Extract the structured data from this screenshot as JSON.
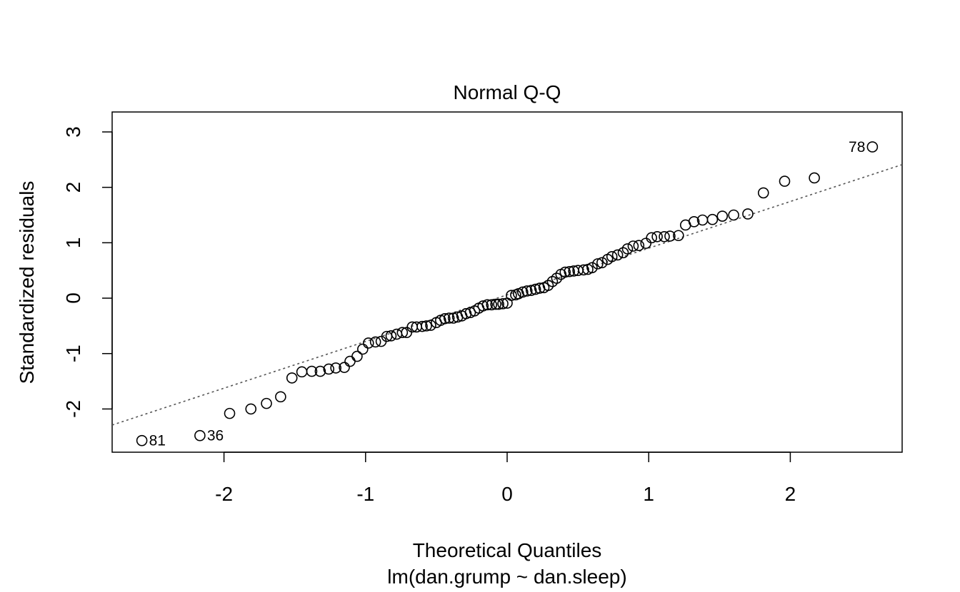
{
  "chart_data": {
    "type": "scatter",
    "title": "Normal Q-Q",
    "xlabel": "Theoretical Quantiles",
    "subtitle": "lm(dan.grump ~ dan.sleep)",
    "ylabel": "Standardized residuals",
    "xlim": [
      -2.79,
      2.79
    ],
    "ylim": [
      -2.78,
      3.36
    ],
    "x_ticks": [
      -2,
      -1,
      0,
      1,
      2
    ],
    "x_tick_labels": [
      "-2",
      "-1",
      "0",
      "1",
      "2"
    ],
    "y_ticks": [
      -2,
      -1,
      0,
      1,
      2,
      3
    ],
    "y_tick_labels": [
      "-2",
      "-1",
      "0",
      "1",
      "2",
      "3"
    ],
    "grid": false,
    "legend": "none",
    "reference_line": {
      "style": "dotted",
      "color": "#555555",
      "points": [
        [
          -2.79,
          -2.29
        ],
        [
          2.79,
          2.41
        ]
      ]
    },
    "points": [
      [
        -2.58,
        -2.57
      ],
      [
        -2.17,
        -2.48
      ],
      [
        -1.96,
        -2.08
      ],
      [
        -1.81,
        -2.0
      ],
      [
        -1.7,
        -1.9
      ],
      [
        -1.6,
        -1.78
      ],
      [
        -1.52,
        -1.44
      ],
      [
        -1.45,
        -1.33
      ],
      [
        -1.38,
        -1.32
      ],
      [
        -1.32,
        -1.32
      ],
      [
        -1.26,
        -1.28
      ],
      [
        -1.21,
        -1.26
      ],
      [
        -1.15,
        -1.25
      ],
      [
        -1.11,
        -1.14
      ],
      [
        -1.06,
        -1.05
      ],
      [
        -1.02,
        -0.92
      ],
      [
        -0.98,
        -0.81
      ],
      [
        -0.93,
        -0.79
      ],
      [
        -0.89,
        -0.78
      ],
      [
        -0.85,
        -0.69
      ],
      [
        -0.82,
        -0.68
      ],
      [
        -0.78,
        -0.65
      ],
      [
        -0.74,
        -0.62
      ],
      [
        -0.71,
        -0.62
      ],
      [
        -0.67,
        -0.52
      ],
      [
        -0.64,
        -0.52
      ],
      [
        -0.6,
        -0.51
      ],
      [
        -0.57,
        -0.5
      ],
      [
        -0.54,
        -0.49
      ],
      [
        -0.5,
        -0.44
      ],
      [
        -0.47,
        -0.4
      ],
      [
        -0.44,
        -0.37
      ],
      [
        -0.41,
        -0.36
      ],
      [
        -0.38,
        -0.36
      ],
      [
        -0.35,
        -0.34
      ],
      [
        -0.32,
        -0.32
      ],
      [
        -0.29,
        -0.28
      ],
      [
        -0.26,
        -0.26
      ],
      [
        -0.23,
        -0.23
      ],
      [
        -0.2,
        -0.18
      ],
      [
        -0.17,
        -0.14
      ],
      [
        -0.14,
        -0.12
      ],
      [
        -0.11,
        -0.12
      ],
      [
        -0.08,
        -0.11
      ],
      [
        -0.06,
        -0.11
      ],
      [
        -0.03,
        -0.1
      ],
      [
        0.0,
        -0.09
      ],
      [
        0.03,
        0.05
      ],
      [
        0.06,
        0.06
      ],
      [
        0.08,
        0.08
      ],
      [
        0.11,
        0.11
      ],
      [
        0.14,
        0.13
      ],
      [
        0.17,
        0.14
      ],
      [
        0.2,
        0.16
      ],
      [
        0.23,
        0.18
      ],
      [
        0.26,
        0.19
      ],
      [
        0.29,
        0.23
      ],
      [
        0.32,
        0.3
      ],
      [
        0.35,
        0.36
      ],
      [
        0.38,
        0.43
      ],
      [
        0.41,
        0.47
      ],
      [
        0.44,
        0.48
      ],
      [
        0.47,
        0.49
      ],
      [
        0.5,
        0.5
      ],
      [
        0.54,
        0.51
      ],
      [
        0.57,
        0.52
      ],
      [
        0.6,
        0.55
      ],
      [
        0.64,
        0.62
      ],
      [
        0.67,
        0.64
      ],
      [
        0.71,
        0.7
      ],
      [
        0.74,
        0.75
      ],
      [
        0.78,
        0.78
      ],
      [
        0.82,
        0.82
      ],
      [
        0.85,
        0.89
      ],
      [
        0.89,
        0.94
      ],
      [
        0.93,
        0.95
      ],
      [
        0.98,
        0.99
      ],
      [
        1.02,
        1.09
      ],
      [
        1.06,
        1.11
      ],
      [
        1.11,
        1.11
      ],
      [
        1.15,
        1.12
      ],
      [
        1.21,
        1.13
      ],
      [
        1.26,
        1.32
      ],
      [
        1.32,
        1.38
      ],
      [
        1.38,
        1.41
      ],
      [
        1.45,
        1.42
      ],
      [
        1.52,
        1.48
      ],
      [
        1.6,
        1.5
      ],
      [
        1.7,
        1.52
      ],
      [
        1.81,
        1.9
      ],
      [
        1.96,
        2.11
      ],
      [
        2.17,
        2.17
      ],
      [
        2.58,
        2.73
      ]
    ],
    "point_labels": [
      {
        "text": "81",
        "x": -2.58,
        "y": -2.57,
        "side": "right"
      },
      {
        "text": "36",
        "x": -2.17,
        "y": -2.48,
        "side": "right"
      },
      {
        "text": "78",
        "x": 2.58,
        "y": 2.73,
        "side": "left"
      }
    ]
  }
}
